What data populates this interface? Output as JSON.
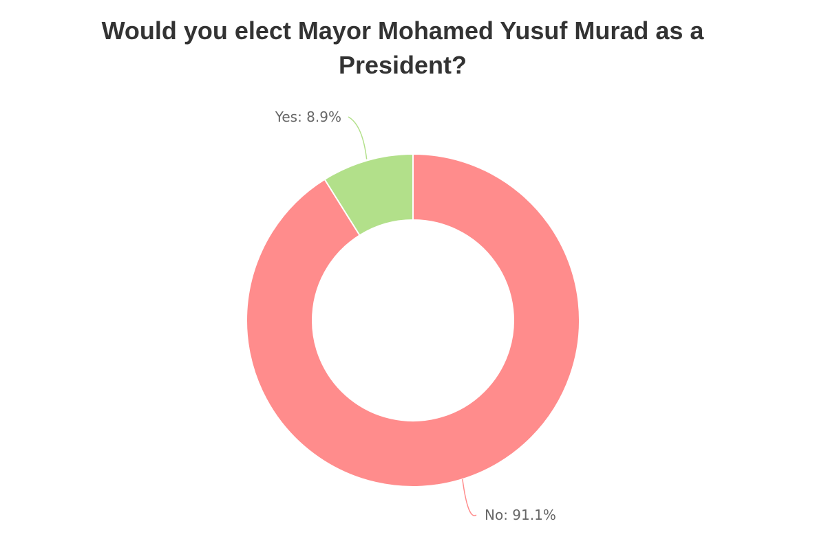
{
  "chart_data": {
    "type": "pie",
    "variant": "donut",
    "title": "Would you elect Mayor Mohamed Yusuf Murad as a President?",
    "slices": [
      {
        "label": "No",
        "value": 91.1,
        "display": "No: 91.1%",
        "color": "#ff8c8c"
      },
      {
        "label": "Yes",
        "value": 8.9,
        "display": "Yes: 8.9%",
        "color": "#b2e08a"
      }
    ],
    "legend": "none",
    "labels": "outside-with-leader-lines"
  }
}
